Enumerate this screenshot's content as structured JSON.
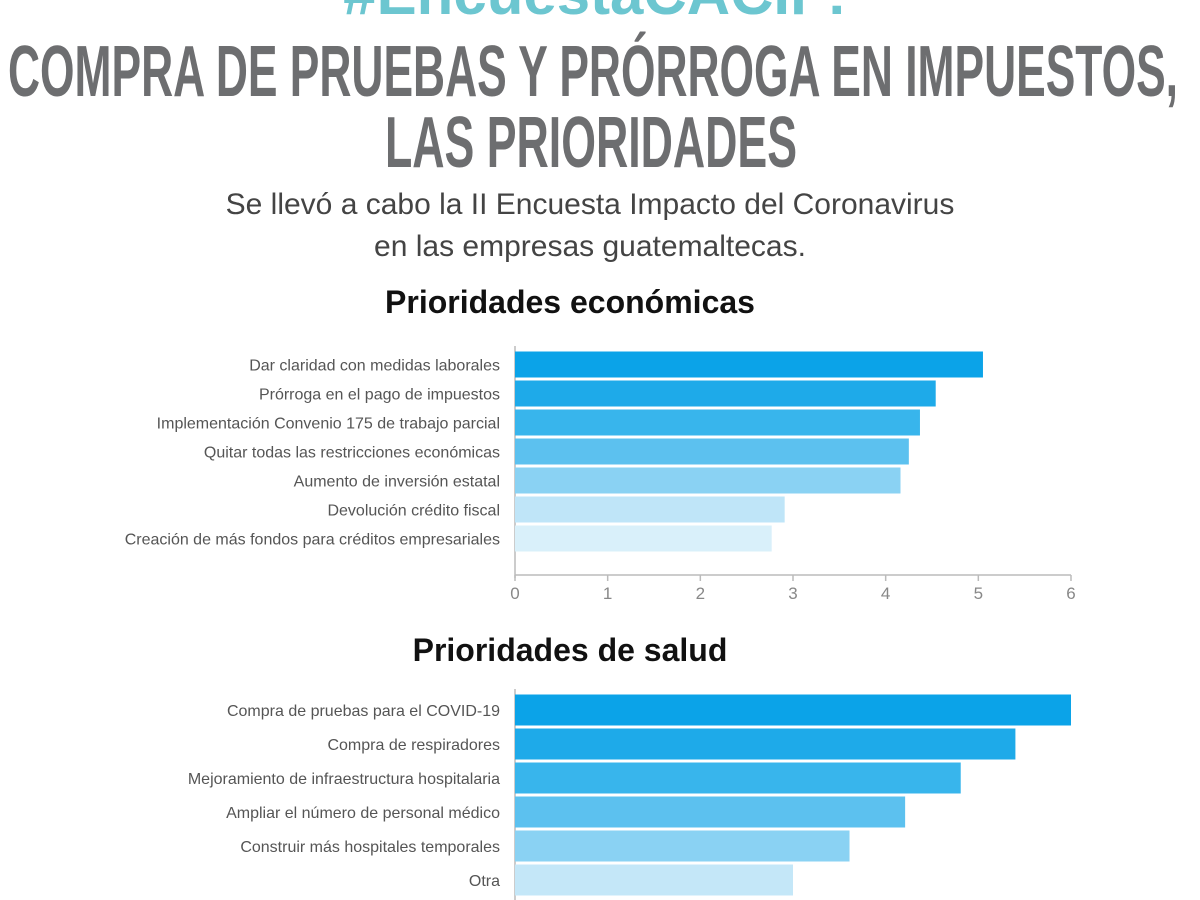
{
  "header": {
    "hashtag": "#EncuestaCACIF:",
    "title_lines": [
      "COMPRA DE PRUEBAS Y PRÓRROGA EN IMPUESTOS,",
      "LAS PRIORIDADES"
    ],
    "subtitle_lines": [
      "Se llevó a cabo la II Encuesta Impacto del Coronavirus",
      "en las empresas guatemaltecas."
    ]
  },
  "chart_data": [
    {
      "type": "bar",
      "orientation": "horizontal",
      "title": "Prioridades económicas",
      "categories": [
        "Dar claridad con medidas laborales",
        "Prórroga en el pago de impuestos",
        "Implementación Convenio 175 de trabajo parcial",
        "Quitar todas las restricciones económicas",
        "Aumento de inversión estatal",
        "Devolución crédito fiscal",
        "Creación de más fondos para créditos empresariales"
      ],
      "values": [
        5.05,
        4.54,
        4.37,
        4.25,
        4.16,
        2.91,
        2.77
      ],
      "colors": [
        "#0ba3e8",
        "#1eaae9",
        "#38b5ec",
        "#5cc1ef",
        "#8ad2f3",
        "#bfe5f8",
        "#d9f0fa"
      ],
      "xlim": [
        0,
        6
      ],
      "xticks": [
        0,
        1,
        2,
        3,
        4,
        5,
        6
      ]
    },
    {
      "type": "bar",
      "orientation": "horizontal",
      "title": "Prioridades de salud",
      "categories": [
        "Compra de pruebas para el COVID-19",
        "Compra de respiradores",
        "Mejoramiento de infraestructura hospitalaria",
        "Ampliar el número de personal médico",
        "Construir más hospitales temporales",
        "Otra"
      ],
      "values": [
        6.0,
        5.4,
        4.81,
        4.21,
        3.61,
        3.0
      ],
      "colors": [
        "#0ba3e8",
        "#1eaae9",
        "#38b5ec",
        "#5cc1ef",
        "#8ad2f3",
        "#c4e7f8"
      ],
      "xlim": [
        0,
        6
      ]
    }
  ]
}
